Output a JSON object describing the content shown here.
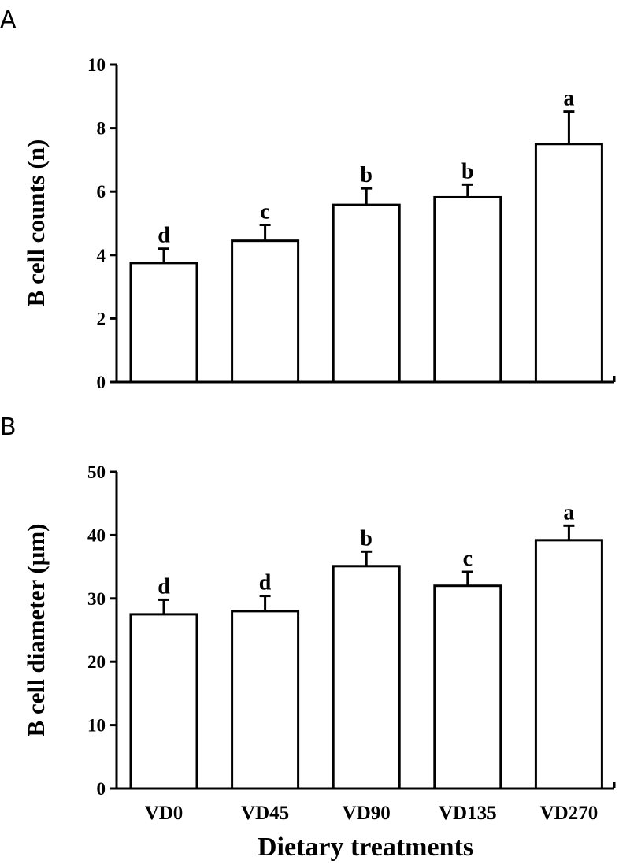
{
  "chart_data": [
    {
      "panel": "A",
      "type": "bar",
      "categories": [
        "VD0",
        "VD45",
        "VD90",
        "VD135",
        "VD270"
      ],
      "values": [
        3.75,
        4.45,
        5.58,
        5.82,
        7.5
      ],
      "errors": [
        0.45,
        0.5,
        0.52,
        0.4,
        1.02
      ],
      "significance": [
        "d",
        "c",
        "b",
        "b",
        "a"
      ],
      "ylabel": "B cell counts (n)",
      "xlabel": "",
      "ylim": [
        0,
        10
      ],
      "yticks": [
        0,
        2,
        4,
        6,
        8,
        10
      ],
      "show_category_labels": false
    },
    {
      "panel": "B",
      "type": "bar",
      "categories": [
        "VD0",
        "VD45",
        "VD90",
        "VD135",
        "VD270"
      ],
      "values": [
        27.5,
        28.0,
        35.1,
        32.0,
        39.2
      ],
      "errors": [
        2.3,
        2.4,
        2.3,
        2.2,
        2.3
      ],
      "significance": [
        "d",
        "d",
        "b",
        "c",
        "a"
      ],
      "ylabel": "B cell diameter (μm)",
      "xlabel": "Dietary treatments",
      "ylim": [
        0,
        50
      ],
      "yticks": [
        0,
        10,
        20,
        30,
        40,
        50
      ],
      "show_category_labels": true
    }
  ]
}
